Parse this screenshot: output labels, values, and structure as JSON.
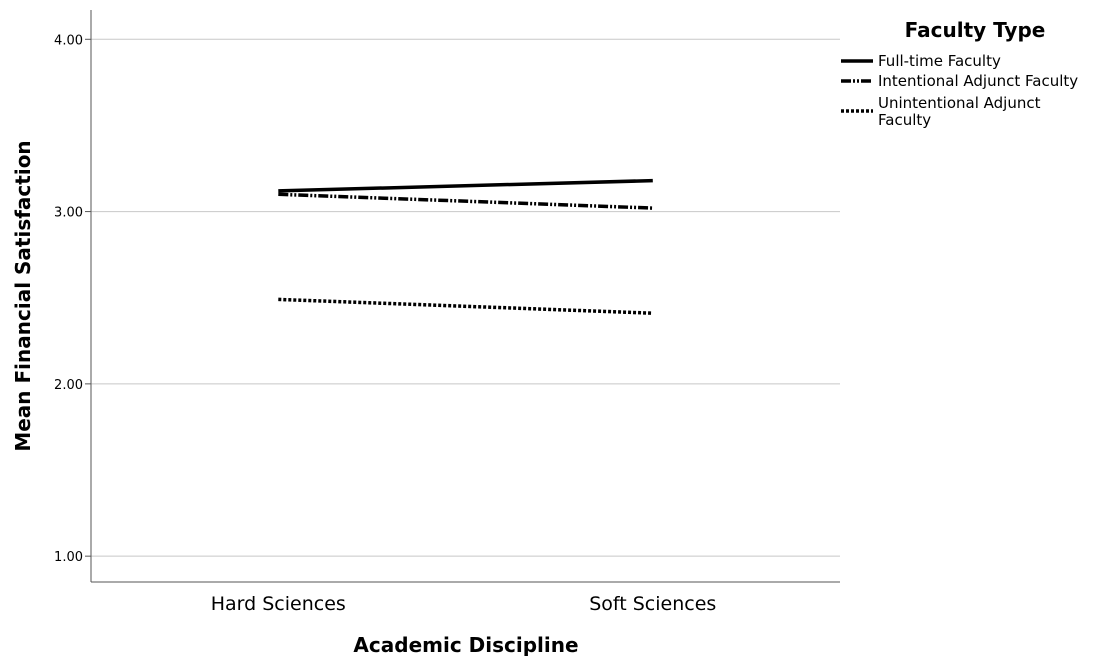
{
  "chart_data": {
    "type": "line",
    "xlabel": "Academic Discipline",
    "ylabel": "Mean Financial Satisfaction",
    "categories": [
      "Hard Sciences",
      "Soft Sciences"
    ],
    "ylim": [
      0.85,
      4.17
    ],
    "yticks": [
      1.0,
      2.0,
      3.0,
      4.0
    ],
    "ytick_labels": [
      "1.00",
      "2.00",
      "3.00",
      "4.00"
    ],
    "grid": true,
    "legend": {
      "title": "Faculty Type",
      "placement": "top-right, outside plot"
    },
    "series": [
      {
        "name": "Full-time Faculty",
        "name_lines": [
          "Full-time Faculty"
        ],
        "style": "solid",
        "values": [
          3.12,
          3.18
        ]
      },
      {
        "name": "Intentional Adjunct Faculty",
        "name_lines": [
          "Intentional Adjunct Faculty"
        ],
        "style": "dash-dot-dot",
        "values": [
          3.1,
          3.02
        ]
      },
      {
        "name": "Unintentional Adjunct Faculty",
        "name_lines": [
          "Unintentional Adjunct",
          "Faculty"
        ],
        "style": "dotted",
        "values": [
          2.49,
          2.41
        ]
      }
    ]
  }
}
